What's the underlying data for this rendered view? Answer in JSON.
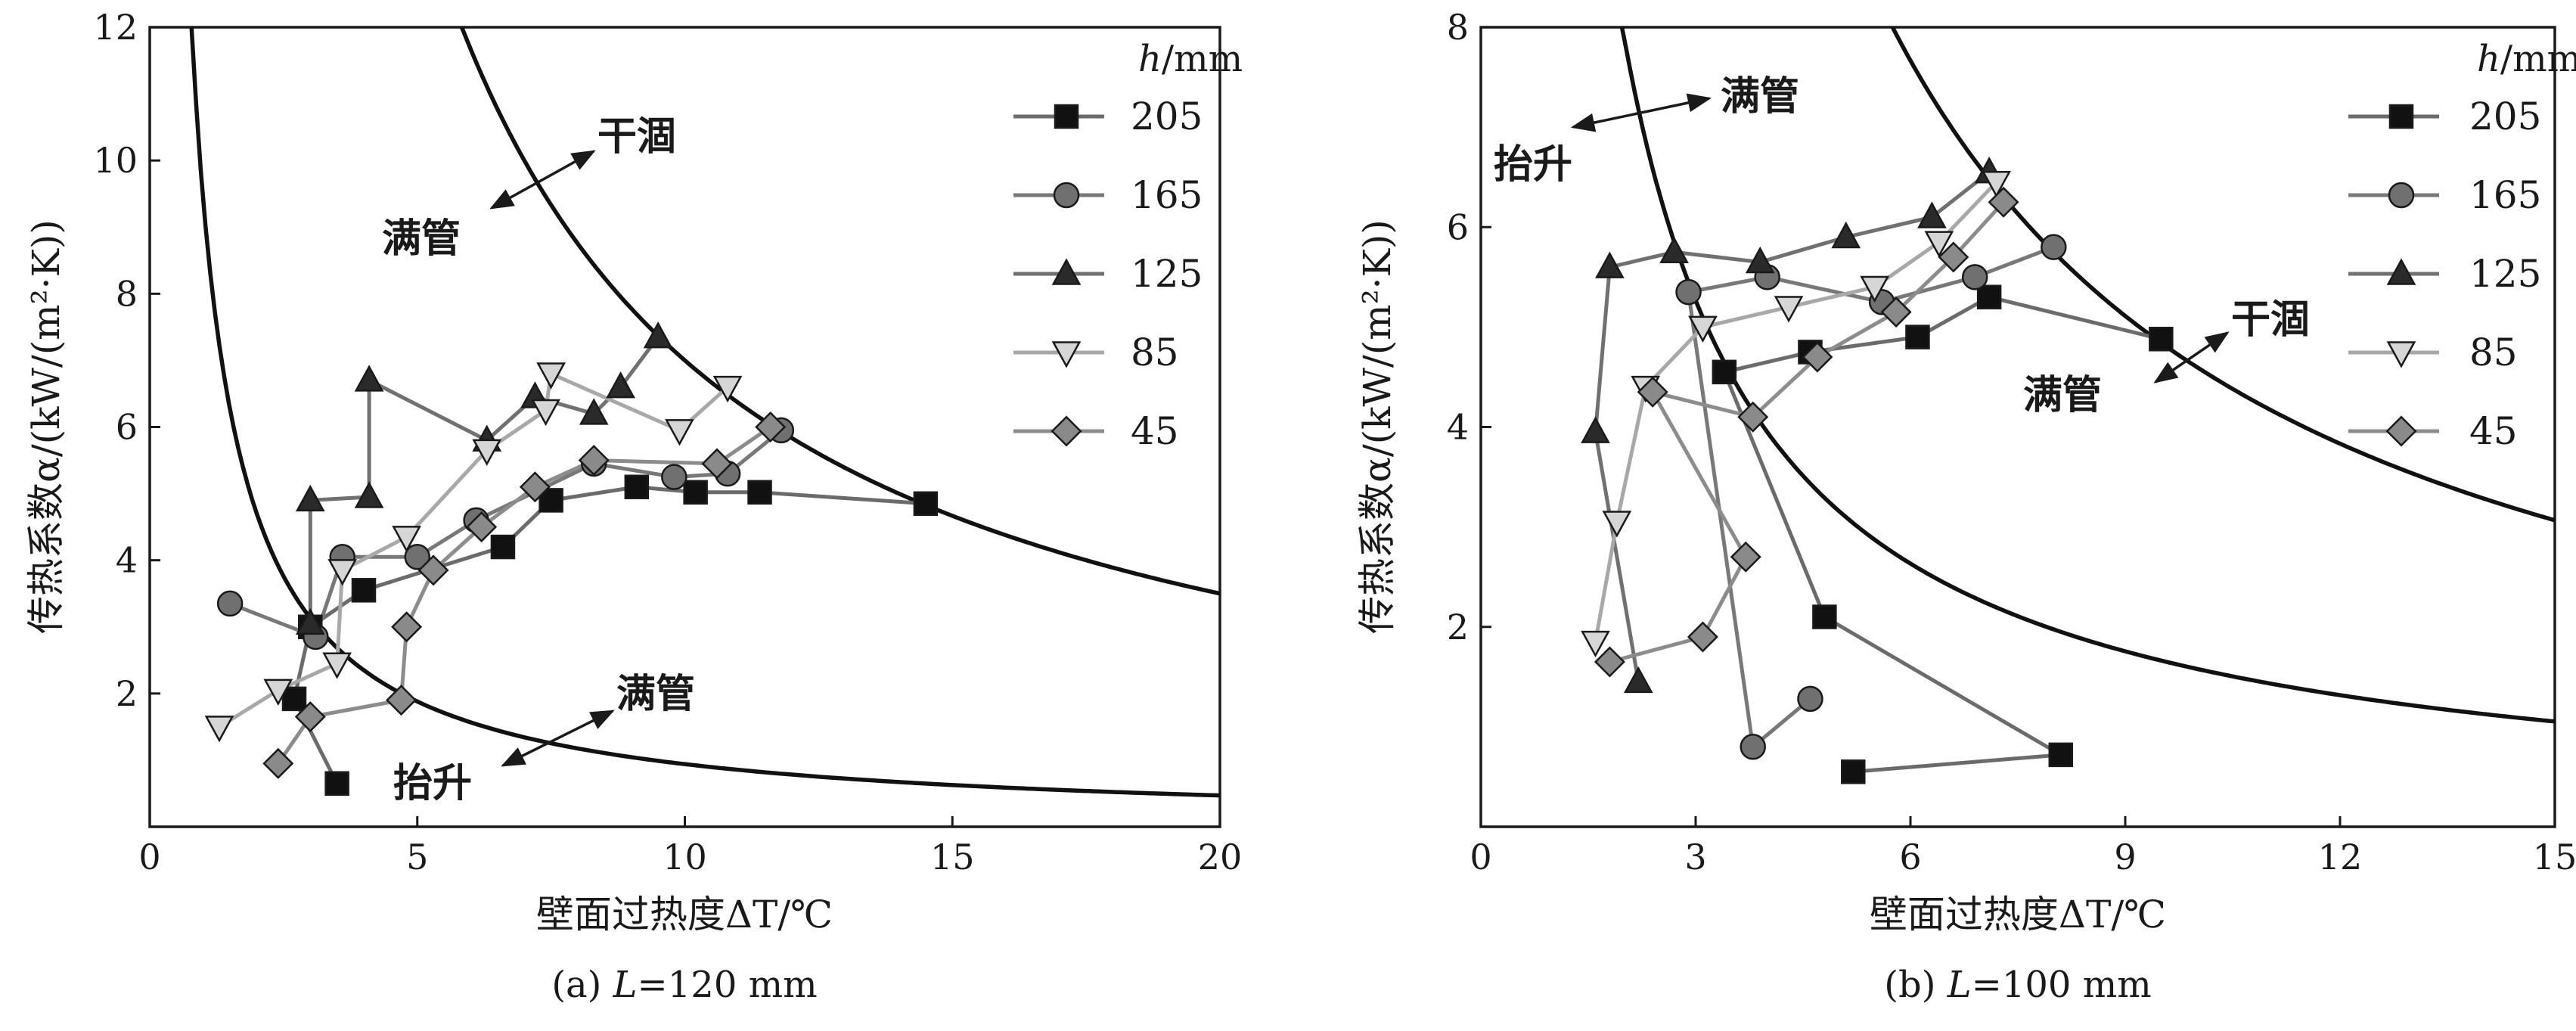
{
  "panels": [
    {
      "caption_prefix": "(a) ",
      "caption_var": "L",
      "caption_rest": "=120 mm",
      "xlabel": "壁面过热度ΔT/℃",
      "ylabel": "传热系数α/(kW/(m²·K))",
      "xlim": [
        0,
        20
      ],
      "ylim": [
        0,
        12
      ],
      "xticks": [
        "0",
        "5",
        "10",
        "15",
        "20"
      ],
      "yticks": [
        "2",
        "4",
        "6",
        "8",
        "10",
        "12"
      ],
      "legend_title": "h/mm",
      "annotations": {
        "upper_left": "满管",
        "upper_right": "干涸",
        "lower_right": "满管",
        "lower_left": "抬升"
      }
    },
    {
      "caption_prefix": "(b) ",
      "caption_var": "L",
      "caption_rest": "=100 mm",
      "xlabel": "壁面过热度ΔT/℃",
      "ylabel": "传热系数α/(kW/(m²·K))",
      "xlim": [
        0,
        15
      ],
      "ylim": [
        0,
        8
      ],
      "xticks": [
        "0",
        "3",
        "6",
        "9",
        "12",
        "15"
      ],
      "yticks": [
        "2",
        "4",
        "6",
        "8"
      ],
      "legend_title": "h/mm",
      "annotations": {
        "top_right": "满管",
        "top_left": "抬升",
        "mid_upper": "干涸",
        "mid_lower": "满管"
      }
    }
  ],
  "chart_data": [
    {
      "type": "line",
      "title": "",
      "xlabel": "壁面过热度ΔT/℃",
      "ylabel": "传热系数α/(kW/(m²·K))",
      "xlim": [
        0,
        20
      ],
      "ylim": [
        0,
        12
      ],
      "legend_title": "h/mm",
      "legend_position": "top-right",
      "grid": false,
      "series": [
        {
          "name": "205",
          "marker": "square",
          "color": "#6b6b6b",
          "x": [
            3.5,
            2.7,
            3.0,
            4.0,
            6.6,
            7.5,
            9.1,
            10.2,
            11.4,
            14.5
          ],
          "y": [
            0.65,
            1.92,
            3.0,
            3.55,
            4.2,
            4.9,
            5.1,
            5.02,
            5.02,
            4.85
          ]
        },
        {
          "name": "165",
          "marker": "circle",
          "color": "#787878",
          "x": [
            1.5,
            3.1,
            3.6,
            5.0,
            6.1,
            8.3,
            9.8,
            10.8,
            11.8
          ],
          "y": [
            3.35,
            2.85,
            4.05,
            4.05,
            4.6,
            5.45,
            5.25,
            5.3,
            5.95
          ]
        },
        {
          "name": "125",
          "marker": "triangle-up",
          "color": "#707070",
          "x": [
            3.0,
            3.0,
            4.1,
            4.1,
            6.3,
            7.2,
            8.3,
            8.8,
            9.5
          ],
          "y": [
            3.05,
            4.9,
            4.95,
            6.7,
            5.8,
            6.45,
            6.2,
            6.6,
            7.35
          ]
        },
        {
          "name": "85",
          "marker": "triangle-down",
          "color": "#a8a8a8",
          "x": [
            1.3,
            2.4,
            3.5,
            3.6,
            4.8,
            6.3,
            7.4,
            7.5,
            9.9,
            10.8
          ],
          "y": [
            1.5,
            2.05,
            2.45,
            3.85,
            4.35,
            5.65,
            6.25,
            6.8,
            5.95,
            6.6
          ]
        },
        {
          "name": "45",
          "marker": "diamond",
          "color": "#8c8c8c",
          "x": [
            2.4,
            3.0,
            4.7,
            4.8,
            5.3,
            6.2,
            7.2,
            8.3,
            10.6,
            11.6
          ],
          "y": [
            0.95,
            1.65,
            1.9,
            3.0,
            3.85,
            4.5,
            5.1,
            5.5,
            5.45,
            6.0
          ]
        }
      ]
    },
    {
      "type": "line",
      "title": "",
      "xlabel": "壁面过热度ΔT/℃",
      "ylabel": "传热系数α/(kW/(m²·K))",
      "xlim": [
        0,
        15
      ],
      "ylim": [
        0,
        8
      ],
      "legend_title": "h/mm",
      "legend_position": "top-right",
      "grid": false,
      "series": [
        {
          "name": "205",
          "marker": "square",
          "color": "#6b6b6b",
          "x": [
            5.2,
            8.1,
            4.8,
            3.4,
            4.6,
            6.1,
            7.1,
            9.5
          ],
          "y": [
            0.55,
            0.72,
            2.1,
            4.55,
            4.75,
            4.9,
            5.3,
            4.88
          ]
        },
        {
          "name": "165",
          "marker": "circle",
          "color": "#787878",
          "x": [
            4.6,
            3.8,
            2.9,
            4.0,
            5.6,
            6.9,
            8.0
          ],
          "y": [
            1.28,
            0.8,
            5.35,
            5.5,
            5.25,
            5.5,
            5.8
          ]
        },
        {
          "name": "125",
          "marker": "triangle-up",
          "color": "#707070",
          "x": [
            2.2,
            1.6,
            1.8,
            2.7,
            3.9,
            5.1,
            6.3,
            7.1
          ],
          "y": [
            1.45,
            3.95,
            5.6,
            5.75,
            5.65,
            5.9,
            6.1,
            6.55
          ]
        },
        {
          "name": "85",
          "marker": "triangle-down",
          "color": "#a8a8a8",
          "x": [
            1.6,
            1.9,
            2.3,
            3.1,
            4.3,
            5.5,
            6.4,
            7.2
          ],
          "y": [
            1.85,
            3.05,
            4.4,
            5.0,
            5.2,
            5.4,
            5.85,
            6.45
          ]
        },
        {
          "name": "45",
          "marker": "diamond",
          "color": "#8c8c8c",
          "x": [
            1.8,
            3.1,
            3.7,
            2.4,
            3.8,
            4.7,
            5.8,
            6.6,
            7.3
          ],
          "y": [
            1.65,
            1.9,
            2.7,
            4.35,
            4.1,
            4.7,
            5.15,
            5.7,
            6.25
          ]
        }
      ]
    }
  ]
}
